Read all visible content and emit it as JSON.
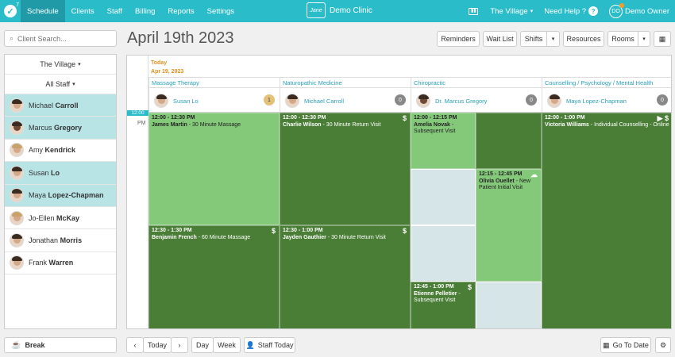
{
  "nav": {
    "logo_badge": "7",
    "items": [
      {
        "label": "Schedule"
      },
      {
        "label": "Clients"
      },
      {
        "label": "Staff"
      },
      {
        "label": "Billing"
      },
      {
        "label": "Reports"
      },
      {
        "label": "Settings"
      }
    ],
    "brand_logo_text": "Jane",
    "clinic_name": "Demo Clinic",
    "location": "The Village",
    "help": "Need Help ?",
    "user_initials": "DO",
    "user_name": "Demo Owner"
  },
  "sidebar": {
    "search_placeholder": "Client Search...",
    "location_filter": "The Village",
    "staff_filter": "All Staff",
    "staff": [
      {
        "first": "Michael",
        "last": "Carroll",
        "selected": true
      },
      {
        "first": "Marcus",
        "last": "Gregory",
        "selected": true
      },
      {
        "first": "Amy",
        "last": "Kendrick",
        "selected": false
      },
      {
        "first": "Susan",
        "last": "Lo",
        "selected": true
      },
      {
        "first": "Maya",
        "last": "Lopez-Chapman",
        "selected": true
      },
      {
        "first": "Jo-Ellen",
        "last": "McKay",
        "selected": false
      },
      {
        "first": "Jonathan",
        "last": "Morris",
        "selected": false
      },
      {
        "first": "Frank",
        "last": "Warren",
        "selected": false
      }
    ],
    "break_label": "Break"
  },
  "header": {
    "title": "April 19th 2023",
    "buttons": {
      "reminders": "Reminders",
      "waitlist": "Wait List",
      "shifts": "Shifts",
      "resources": "Resources",
      "rooms": "Rooms"
    }
  },
  "calendar": {
    "today_label": "Today",
    "date_label": "Apr 19, 2023",
    "now_label": "12:00",
    "pm_label": "PM",
    "columns": [
      {
        "discipline": "Massage Therapy",
        "provider": "Susan Lo",
        "count": "1"
      },
      {
        "discipline": "Naturopathic Medicine",
        "provider": "Michael Carroll",
        "count": "0"
      },
      {
        "discipline": "Chiropractic",
        "provider": "Dr. Marcus Gregory",
        "count": "0"
      },
      {
        "discipline": "Counselling / Psychology / Mental Health",
        "provider": "Maya Lopez-Chapman",
        "count": "0"
      }
    ],
    "appointments": [
      {
        "time": "12:00 - 12:30 PM",
        "client": "James Martin",
        "service": "30 Minute Massage"
      },
      {
        "time": "12:30 - 1:30 PM",
        "client": "Benjamin French",
        "service": "60 Minute Massage"
      },
      {
        "time": "12:00 - 12:30 PM",
        "client": "Charlie Wilson",
        "service": "30 Minute Return Visit"
      },
      {
        "time": "12:30 - 1:00 PM",
        "client": "Jayden Gauthier",
        "service": "30 Minute Return Visit"
      },
      {
        "time": "12:00 - 12:15 PM",
        "client": "Amelia Novak",
        "service": "Subsequent Visit"
      },
      {
        "time": "12:15 - 12:45 PM",
        "client": "Olivia Ouellet",
        "service": "New Patient Initial Visit"
      },
      {
        "time": "12:45 - 1:00 PM",
        "client": "Etienne Pelletier",
        "service": "Subsequent Visit"
      },
      {
        "time": "12:00 - 1:00 PM",
        "client": "Victoria Williams",
        "service": "Individual Counselling - Online"
      }
    ]
  },
  "footer": {
    "today": "Today",
    "day": "Day",
    "week": "Week",
    "staff_today": "Staff Today",
    "goto_date": "Go To Date"
  },
  "colors": {
    "nav": "#2bbcc9",
    "appt_light": "#84c87a",
    "appt_dark": "#4a7d36",
    "selected_staff": "#b8e4e6"
  }
}
